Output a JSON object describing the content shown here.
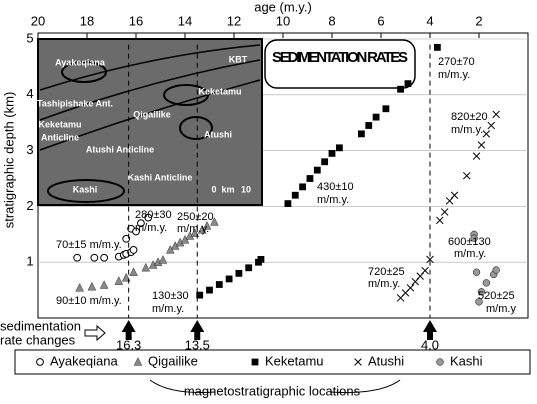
{
  "chart_data": {
    "type": "scatter",
    "xlabel": "age (m.y.)",
    "ylabel": "stratigraphic depth (km)",
    "xlim": [
      20,
      0
    ],
    "xticks": [
      20,
      18,
      16,
      14,
      12,
      10,
      8,
      6,
      4,
      2
    ],
    "ylim": [
      0,
      5
    ],
    "yticks": [
      1,
      2,
      3,
      4,
      5
    ],
    "grid": true,
    "series": [
      {
        "name": "Ayakeqiana",
        "marker": "circle-open",
        "color": "#000000",
        "x": [
          18.4,
          17.7,
          17.3,
          16.7,
          16.5,
          16.4,
          16.2,
          16.1,
          16.4,
          16.2,
          16.0,
          15.8,
          15.5
        ],
        "values": [
          1.08,
          1.08,
          1.08,
          1.1,
          1.13,
          1.15,
          1.18,
          1.22,
          1.42,
          1.6,
          1.55,
          1.7,
          1.8
        ]
      },
      {
        "name": "Qigailike",
        "marker": "triangle",
        "color": "#888888",
        "x": [
          18.3,
          17.8,
          17.3,
          16.7,
          16.4,
          16.1,
          15.6,
          15.3,
          15.1,
          14.9,
          14.6,
          14.4,
          14.2,
          14.0,
          13.8,
          13.6,
          13.3,
          13.1,
          12.8
        ],
        "values": [
          0.54,
          0.56,
          0.59,
          0.66,
          0.72,
          0.82,
          0.9,
          0.95,
          1.0,
          1.04,
          1.22,
          1.29,
          1.35,
          1.4,
          1.47,
          1.52,
          1.58,
          1.65,
          1.72
        ]
      },
      {
        "name": "Keketamu",
        "marker": "square",
        "color": "#000000",
        "x": [
          13.4,
          13.0,
          12.6,
          12.2,
          11.8,
          11.4,
          11.0,
          10.9,
          9.8,
          9.5,
          9.2,
          8.9,
          8.6,
          8.3,
          8.0,
          7.7,
          6.8,
          6.5,
          6.2,
          5.8,
          5.2,
          4.9,
          3.7
        ],
        "values": [
          0.41,
          0.5,
          0.6,
          0.7,
          0.8,
          0.9,
          1.0,
          1.05,
          2.05,
          2.2,
          2.35,
          2.5,
          2.65,
          2.8,
          2.95,
          3.05,
          3.3,
          3.45,
          3.6,
          3.75,
          4.1,
          4.2,
          4.85
        ]
      },
      {
        "name": "Atushi",
        "marker": "x",
        "color": "#000000",
        "x": [
          5.2,
          5.0,
          4.8,
          4.6,
          4.4,
          4.2,
          4.0,
          3.6,
          3.4,
          3.2,
          3.0,
          2.5,
          2.1,
          1.9,
          1.7,
          1.5,
          1.3
        ],
        "values": [
          0.36,
          0.45,
          0.54,
          0.65,
          0.75,
          0.85,
          1.05,
          1.75,
          1.9,
          2.1,
          2.2,
          2.55,
          2.9,
          3.1,
          3.3,
          3.45,
          3.65
        ]
      },
      {
        "name": "Kashi",
        "marker": "circle",
        "color": "#999999",
        "x": [
          2.2,
          2.2,
          2.1,
          2.0,
          1.9,
          1.7,
          1.4,
          1.3
        ],
        "values": [
          1.5,
          1.43,
          0.82,
          0.29,
          0.47,
          0.63,
          0.78,
          0.86
        ]
      }
    ],
    "rate_annotations": [
      "70±15 m/m.y.",
      "90±10 m/m.y.",
      "280±30",
      "m/m.y.",
      "250±20",
      "m/m.y.",
      "130±30",
      "m/m.y.",
      "430±10",
      "m/m.y.",
      "270±70",
      "m/m.y.",
      "820±20",
      "m/m.y.",
      "600±130",
      "m/m.y.",
      "720±25",
      "m/m.y.",
      "520±25",
      "m/m.y"
    ],
    "rates_title": "SEDIMENTATION RATES",
    "rate_changes_label": [
      "sedimentation",
      "rate changes"
    ],
    "rate_changes": [
      16.3,
      13.5,
      {
        "value": 4,
        "label": "4.0"
      }
    ],
    "legend_caption": "magnetostratigraphic locations",
    "map_labels": [
      "Ayakeqiana",
      "KBT",
      "Keketamu",
      "Tashipishake Ant.",
      "Qigailike",
      "Keketamu",
      "Anticline",
      "Atushi",
      "Atushi Anticline",
      "Kashi Anticline",
      "Kashi",
      "0",
      "km",
      "10"
    ]
  }
}
